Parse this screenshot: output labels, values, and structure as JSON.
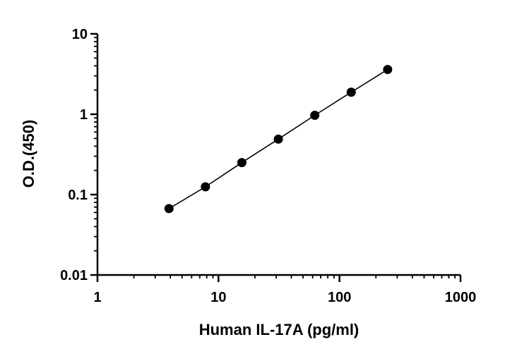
{
  "chart_data": {
    "type": "scatter",
    "title": "",
    "xlabel": "Human IL-17A (pg/ml)",
    "ylabel": "O.D.(450)",
    "xscale": "log",
    "yscale": "log",
    "xlim": [
      1,
      1000
    ],
    "ylim": [
      0.01,
      10
    ],
    "x_ticks": [
      {
        "value": 1,
        "label": "1"
      },
      {
        "value": 10,
        "label": "10"
      },
      {
        "value": 100,
        "label": "100"
      },
      {
        "value": 1000,
        "label": "1000"
      }
    ],
    "y_ticks": [
      {
        "value": 0.01,
        "label": "0.01"
      },
      {
        "value": 0.1,
        "label": "0.1"
      },
      {
        "value": 1,
        "label": "1"
      },
      {
        "value": 10,
        "label": "10"
      }
    ],
    "grid": false,
    "legend": "none",
    "fit_line": true,
    "series": [
      {
        "x": [
          3.9,
          7.8,
          15.6,
          31.25,
          62.5,
          125,
          250
        ],
        "y": [
          0.067,
          0.125,
          0.25,
          0.49,
          0.97,
          1.88,
          3.6
        ],
        "color": "#000000",
        "marker": "circle"
      }
    ]
  }
}
